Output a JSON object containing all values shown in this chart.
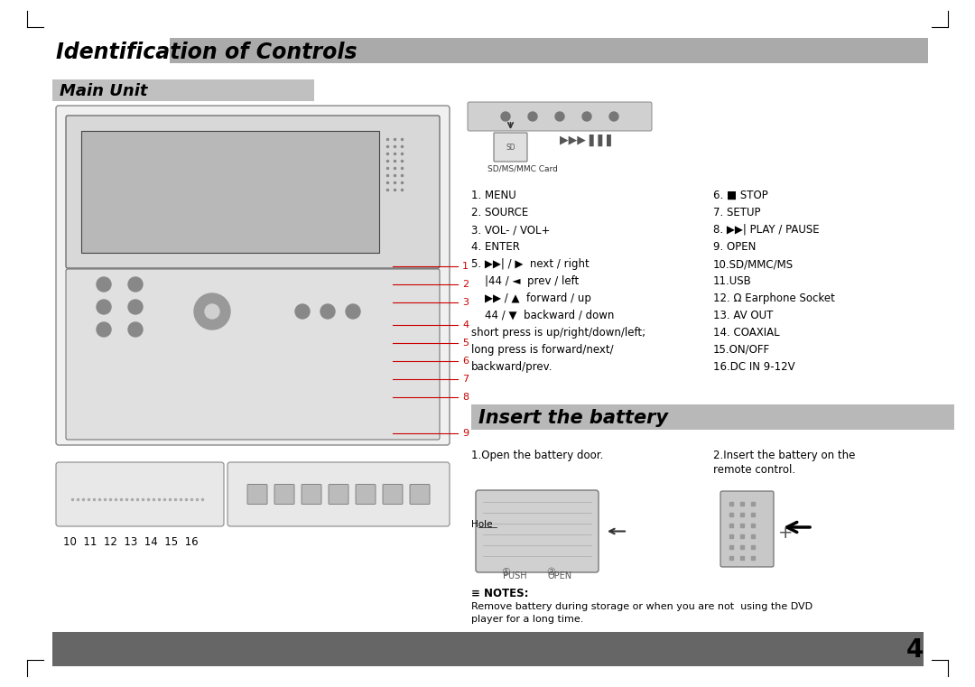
{
  "title": "Identification of Controls",
  "section1": "Main Unit",
  "section2": "Insert the battery",
  "page_number": "4",
  "bg_color": "#ffffff",
  "header_bar_color": "#aaaaaa",
  "section_bar_color": "#999999",
  "dark_bar_color": "#666666",
  "title_color": "#000000",
  "text_color": "#000000",
  "red_color": "#cc0000",
  "left_labels": [
    "1. MENU",
    "2. SOURCE",
    "3. VOL- / VOL+",
    "4. ENTER",
    "5. ▶▶| / ▶  next / right",
    "    |44 / ◄  prev / left",
    "    ▶▶ / ▲  forward / up",
    "    44 / ▼  backward / down",
    "short press is up/right/down/left;",
    "long press is forward/next/",
    "backward/prev."
  ],
  "right_labels": [
    "6. ■ STOP",
    "7. SETUP",
    "8. ▶▶| PLAY / PAUSE",
    "9. OPEN",
    "10.SD/MMC/MS",
    "11.USB",
    "12. Ω Earphone Socket",
    "13. AV OUT",
    "14. COAXIAL",
    "15.ON/OFF",
    "16.DC IN 9-12V"
  ],
  "battery_left": "1.Open the battery door.",
  "battery_right1": "2.Insert the battery on the",
  "battery_right2": "   remote control.",
  "notes_title": "NOTES:",
  "notes_text1": "Remove battery during storage or when you are not  using the DVD",
  "notes_text2": "player for a long time.",
  "hole_label": "Hole",
  "push_label": "PUSH",
  "open_label": "OPEN",
  "sd_label": "SD/MS/MMC Card",
  "number_lines": [
    "10  11  12  13  14  15  16"
  ]
}
